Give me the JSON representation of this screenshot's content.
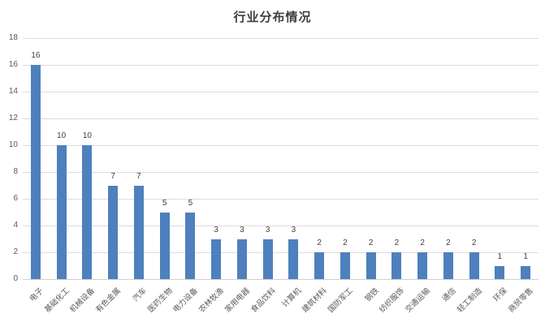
{
  "chart_data": {
    "type": "bar",
    "title": "行业分布情况",
    "categories": [
      "电子",
      "基础化工",
      "机械设备",
      "有色金属",
      "汽车",
      "医药生物",
      "电力设备",
      "农林牧渔",
      "家用电器",
      "食品饮料",
      "计算机",
      "建筑材料",
      "国防军工",
      "钢铁",
      "纺织服饰",
      "交通运输",
      "通信",
      "轻工制造",
      "环保",
      "商贸零售"
    ],
    "values": [
      16,
      10,
      10,
      7,
      7,
      5,
      5,
      3,
      3,
      3,
      3,
      2,
      2,
      2,
      2,
      2,
      2,
      2,
      1,
      1
    ],
    "xlabel": "",
    "ylabel": "",
    "ylim": [
      0,
      18
    ],
    "ytick_step": 2,
    "yticks": [
      0,
      2,
      4,
      6,
      8,
      10,
      12,
      14,
      16,
      18
    ],
    "grid": true,
    "legend": false,
    "data_labels": true,
    "colors": {
      "bar": "#4e80bd",
      "gridline": "#dcdcdc",
      "axis_line": "#d0d0d0",
      "tick_label": "#595959",
      "value_label": "#3f3f3f",
      "title": "#3f3f3f"
    }
  }
}
